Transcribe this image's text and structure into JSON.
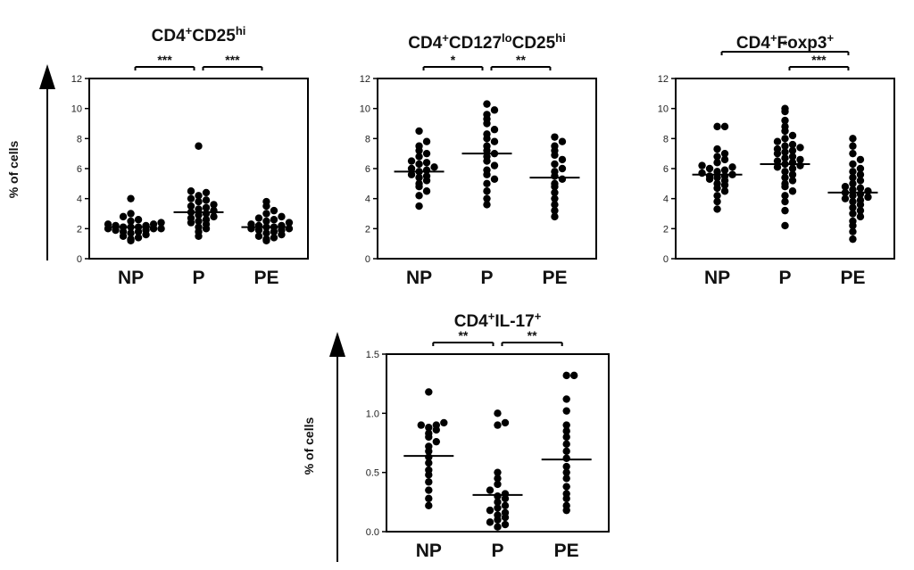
{
  "y_axis_label": "% of cells",
  "chart_data": [
    {
      "type": "scatter",
      "title": "CD4+CD25hi",
      "title_parts": [
        {
          "t": "CD4",
          "sup": false
        },
        {
          "t": "+",
          "sup": true
        },
        {
          "t": "CD25",
          "sup": false
        },
        {
          "t": "hi",
          "sup": true
        }
      ],
      "ylim": [
        0,
        12
      ],
      "yticks": [
        "0",
        "2",
        "4",
        "6",
        "8",
        "10",
        "12"
      ],
      "ytick_values": [
        0,
        2,
        4,
        6,
        8,
        10,
        12
      ],
      "categories": [
        "NP",
        "P",
        "PE"
      ],
      "series": [
        {
          "name": "NP",
          "values": [
            1.2,
            1.3,
            1.4,
            1.5,
            1.6,
            1.7,
            1.8,
            1.8,
            1.9,
            1.9,
            2.0,
            2.0,
            2.0,
            2.1,
            2.1,
            2.1,
            2.2,
            2.2,
            2.3,
            2.3,
            2.4,
            2.5,
            2.6,
            2.8,
            3.0,
            4.0
          ],
          "mean": 2.1
        },
        {
          "name": "P",
          "values": [
            1.5,
            1.8,
            2.0,
            2.1,
            2.3,
            2.4,
            2.5,
            2.6,
            2.7,
            2.8,
            2.9,
            3.0,
            3.1,
            3.2,
            3.3,
            3.4,
            3.5,
            3.6,
            3.8,
            3.9,
            4.0,
            4.2,
            4.4,
            4.5,
            7.5
          ],
          "mean": 3.1
        },
        {
          "name": "PE",
          "values": [
            1.2,
            1.3,
            1.4,
            1.5,
            1.6,
            1.7,
            1.8,
            1.9,
            1.9,
            2.0,
            2.0,
            2.1,
            2.1,
            2.2,
            2.2,
            2.3,
            2.4,
            2.5,
            2.6,
            2.7,
            2.8,
            3.0,
            3.2,
            3.5,
            3.8
          ],
          "mean": 2.1
        }
      ],
      "significance": [
        {
          "from": "NP",
          "to": "P",
          "label": "***"
        },
        {
          "from": "P",
          "to": "PE",
          "label": "***"
        }
      ]
    },
    {
      "type": "scatter",
      "title": "CD4+CD127loCD25hi",
      "title_parts": [
        {
          "t": "CD4",
          "sup": false
        },
        {
          "t": "+",
          "sup": true
        },
        {
          "t": "CD127",
          "sup": false
        },
        {
          "t": "lo",
          "sup": true
        },
        {
          "t": "CD25",
          "sup": false
        },
        {
          "t": "hi",
          "sup": true
        }
      ],
      "ylim": [
        0,
        12
      ],
      "yticks": [
        "0",
        "2",
        "4",
        "6",
        "8",
        "10",
        "12"
      ],
      "ytick_values": [
        0,
        2,
        4,
        6,
        8,
        10,
        12
      ],
      "categories": [
        "NP",
        "P",
        "PE"
      ],
      "series": [
        {
          "name": "NP",
          "values": [
            3.5,
            4.2,
            4.5,
            4.8,
            5.0,
            5.2,
            5.4,
            5.5,
            5.6,
            5.8,
            5.9,
            6.0,
            6.1,
            6.3,
            6.4,
            6.5,
            6.8,
            7.0,
            7.2,
            7.5,
            7.8,
            8.5
          ],
          "mean": 5.8
        },
        {
          "name": "P",
          "values": [
            3.6,
            4.0,
            4.5,
            5.0,
            5.3,
            5.6,
            5.9,
            6.2,
            6.5,
            6.8,
            7.0,
            7.2,
            7.5,
            7.8,
            8.0,
            8.3,
            8.6,
            9.0,
            9.3,
            9.6,
            9.9,
            10.3
          ],
          "mean": 7.0
        },
        {
          "name": "PE",
          "values": [
            2.8,
            3.2,
            3.6,
            4.0,
            4.4,
            4.8,
            5.0,
            5.3,
            5.5,
            5.8,
            6.0,
            6.3,
            6.6,
            6.9,
            7.2,
            7.5,
            7.8,
            8.1
          ],
          "mean": 5.4
        }
      ],
      "significance": [
        {
          "from": "NP",
          "to": "P",
          "label": "*"
        },
        {
          "from": "P",
          "to": "PE",
          "label": "**"
        }
      ]
    },
    {
      "type": "scatter",
      "title": "CD4+Foxp3+",
      "title_parts": [
        {
          "t": "CD4",
          "sup": false
        },
        {
          "t": "+",
          "sup": true
        },
        {
          "t": "Foxp3",
          "sup": false
        },
        {
          "t": "+",
          "sup": true
        }
      ],
      "ylim": [
        0,
        12
      ],
      "yticks": [
        "0",
        "2",
        "4",
        "6",
        "8",
        "10",
        "12"
      ],
      "ytick_values": [
        0,
        2,
        4,
        6,
        8,
        10,
        12
      ],
      "categories": [
        "NP",
        "P",
        "PE"
      ],
      "series": [
        {
          "name": "NP",
          "values": [
            3.3,
            3.8,
            4.2,
            4.5,
            4.7,
            4.9,
            5.0,
            5.2,
            5.3,
            5.4,
            5.5,
            5.5,
            5.6,
            5.7,
            5.8,
            5.9,
            6.0,
            6.1,
            6.2,
            6.4,
            6.6,
            6.8,
            7.0,
            7.3,
            8.8,
            8.8
          ],
          "mean": 5.6
        },
        {
          "name": "P",
          "values": [
            2.2,
            3.2,
            3.8,
            4.2,
            4.5,
            4.8,
            5.0,
            5.2,
            5.4,
            5.6,
            5.8,
            6.0,
            6.1,
            6.2,
            6.3,
            6.4,
            6.5,
            6.6,
            6.7,
            6.8,
            7.0,
            7.1,
            7.2,
            7.3,
            7.4,
            7.5,
            7.6,
            7.8,
            8.0,
            8.2,
            8.5,
            8.8,
            9.2,
            9.8,
            10.0
          ],
          "mean": 6.3
        },
        {
          "name": "PE",
          "values": [
            1.3,
            1.8,
            2.2,
            2.5,
            2.8,
            3.0,
            3.2,
            3.4,
            3.6,
            3.8,
            3.9,
            4.0,
            4.1,
            4.2,
            4.3,
            4.4,
            4.5,
            4.6,
            4.7,
            4.8,
            5.0,
            5.2,
            5.4,
            5.6,
            5.8,
            6.0,
            6.3,
            6.6,
            7.0,
            7.5,
            8.0
          ],
          "mean": 4.4
        }
      ],
      "significance": [
        {
          "from": "NP",
          "to": "PE",
          "label": "*"
        },
        {
          "from": "P",
          "to": "PE",
          "label": "***"
        }
      ]
    },
    {
      "type": "scatter",
      "title": "CD4+IL-17+",
      "title_parts": [
        {
          "t": "CD4",
          "sup": false
        },
        {
          "t": "+",
          "sup": true
        },
        {
          "t": "IL-17",
          "sup": false
        },
        {
          "t": "+",
          "sup": true
        }
      ],
      "ylim": [
        0,
        1.5
      ],
      "yticks": [
        "0.0",
        "0.5",
        "1.0",
        "1.5"
      ],
      "ytick_values": [
        0,
        0.5,
        1.0,
        1.5
      ],
      "categories": [
        "NP",
        "P",
        "PE"
      ],
      "series": [
        {
          "name": "NP",
          "values": [
            0.22,
            0.28,
            0.35,
            0.42,
            0.48,
            0.52,
            0.58,
            0.63,
            0.68,
            0.72,
            0.76,
            0.8,
            0.83,
            0.86,
            0.88,
            0.9,
            0.9,
            0.92,
            1.18
          ],
          "mean": 0.64
        },
        {
          "name": "P",
          "values": [
            0.04,
            0.06,
            0.08,
            0.1,
            0.12,
            0.14,
            0.16,
            0.18,
            0.2,
            0.22,
            0.25,
            0.28,
            0.3,
            0.32,
            0.35,
            0.4,
            0.45,
            0.5,
            0.9,
            0.92,
            1.0
          ],
          "mean": 0.31
        },
        {
          "name": "PE",
          "values": [
            0.18,
            0.22,
            0.28,
            0.32,
            0.38,
            0.45,
            0.5,
            0.55,
            0.62,
            0.68,
            0.74,
            0.8,
            0.85,
            0.9,
            1.02,
            1.12,
            1.32,
            1.32
          ],
          "mean": 0.61
        }
      ],
      "significance": [
        {
          "from": "NP",
          "to": "P",
          "label": "**"
        },
        {
          "from": "P",
          "to": "PE",
          "label": "**"
        }
      ]
    }
  ]
}
